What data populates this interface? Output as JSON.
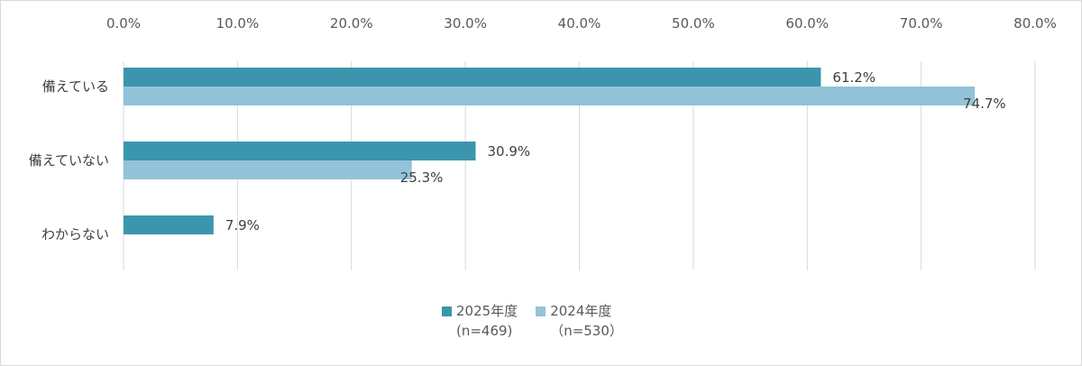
{
  "colors": {
    "series_2025": "#3b96ad",
    "series_2024": "#92c3d8"
  },
  "chart_data": {
    "type": "bar",
    "orientation": "horizontal",
    "categories": [
      "備えている",
      "備えていない",
      "わからない"
    ],
    "series": [
      {
        "name": "2025年度",
        "n_label": "(n=469)",
        "values": [
          61.2,
          30.9,
          7.9
        ],
        "labels": [
          "61.2%",
          "30.9%",
          "7.9%"
        ]
      },
      {
        "name": "2024年度",
        "n_label": "（n=530）",
        "values": [
          74.7,
          25.3,
          null
        ],
        "labels": [
          "74.7%",
          "25.3%",
          ""
        ]
      }
    ],
    "x_ticks": [
      "0.0%",
      "10.0%",
      "20.0%",
      "30.0%",
      "40.0%",
      "50.0%",
      "60.0%",
      "70.0%",
      "80.0%"
    ],
    "xlim": [
      0,
      80
    ],
    "x_axis_position": "top",
    "grid": "vertical",
    "legend_position": "bottom"
  }
}
